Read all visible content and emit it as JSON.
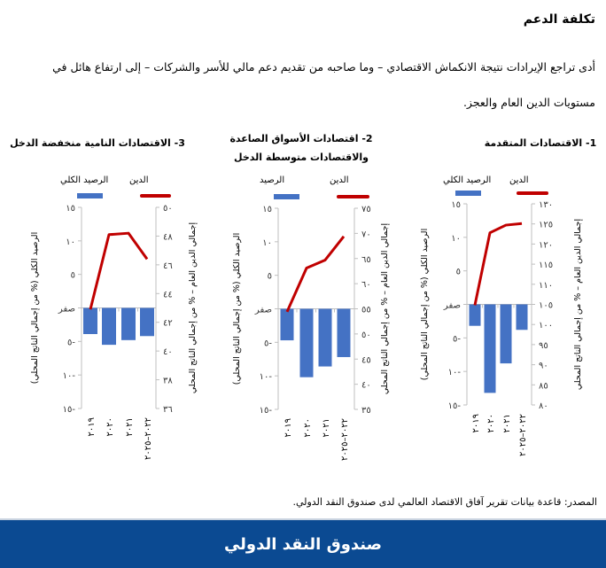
{
  "header": {
    "title": "تكلفة الدعم",
    "paragraph": "أدى تراجع الإيرادات نتيجة الانكماش الاقتصادي – وما صاحبه من تقديم دعم مالي للأسر والشركات – إلى ارتفاع هائل في مستويات الدين العام والعجز."
  },
  "source": "المصدر: قاعدة بيانات تقرير آفاق الاقتصاد العالمي لدى صندوق النقد الدولي.",
  "footer": {
    "brand": "صندوق النقد الدولي",
    "color": "#0b4a92"
  },
  "colors": {
    "balance_bar": "#4472c4",
    "debt_line": "#c00000"
  },
  "chart_data": [
    {
      "type": "bar+line",
      "title": [
        "1- الاقتصادات المتقدمة"
      ],
      "categories": [
        "٢٠١٩",
        "٢٠٢٠",
        "٢٠٢١",
        "٢٠٢٢–٢٠٢٥"
      ],
      "legend": {
        "line": "الدين",
        "bar": "الرصيد الكلي"
      },
      "left_axis": {
        "label": "الرصيد الكلي (% من إجمالي الناتج المحلي)",
        "range": [
          -15,
          15
        ],
        "ticks": [
          "١٥",
          "١٠",
          "٥",
          "صفر",
          "٥-",
          "١٠-",
          "١٥-"
        ]
      },
      "right_axis": {
        "label": "إجمالي الدين العام – % من إجمالي الناتج المحلي",
        "range": [
          80,
          130
        ],
        "ticks": [
          "١٣٠",
          "١٢٥",
          "١٢٠",
          "١١٥",
          "١١٠",
          "١٠٥",
          "١٠٠",
          "٩٥",
          "٩٠",
          "٨٥",
          "٨٠"
        ]
      },
      "series": [
        {
          "name": "الرصيد الكلي",
          "type": "bar",
          "axis": "left",
          "values": [
            -3.2,
            -13.2,
            -8.8,
            -3.8
          ]
        },
        {
          "name": "الدين",
          "type": "line",
          "axis": "right",
          "values": [
            104.8,
            122.8,
            124.7,
            125.1
          ]
        }
      ]
    },
    {
      "type": "bar+line",
      "title": [
        "2- اقتصادات الأسواق الصاعدة",
        "والاقتصادات متوسطة الدخل"
      ],
      "categories": [
        "٢٠١٩",
        "٢٠٢٠",
        "٢٠٢١",
        "٢٠٢٢–٢٠٢٥"
      ],
      "legend": {
        "line": "الدين",
        "bar": "الرصيد"
      },
      "left_axis": {
        "label": "الرصيد الكلي (% من إجمالي الناتج المحلي)",
        "range": [
          -15,
          15
        ],
        "ticks": [
          "١٥",
          "١٠",
          "٥",
          "صفر",
          "٥-",
          "١٠-",
          "١٥-"
        ]
      },
      "right_axis": {
        "label": "إجمالي الدين العام – % من إجمالي الناتج المحلي",
        "range": [
          35,
          75
        ],
        "ticks": [
          "٧٥",
          "٧٠",
          "٦٥",
          "٦٠",
          "٥٥",
          "٥٠",
          "٤٥",
          "٤٠",
          "٣٥"
        ]
      },
      "series": [
        {
          "name": "الرصيد",
          "type": "bar",
          "axis": "left",
          "values": [
            -4.7,
            -10.2,
            -8.6,
            -7.2
          ]
        },
        {
          "name": "الدين",
          "type": "line",
          "axis": "right",
          "values": [
            54.4,
            63.1,
            64.7,
            69.4
          ]
        }
      ]
    },
    {
      "type": "bar+line",
      "title": [
        "3- الاقتصادات النامية منخفضة الدخل"
      ],
      "categories": [
        "٢٠١٩",
        "٢٠٢٠",
        "٢٠٢١",
        "٢٠٢٢–٢٠٢٥"
      ],
      "legend": {
        "line": "الدين",
        "bar": "الرصيد الكلي"
      },
      "left_axis": {
        "label": "الرصيد الكلي (% من إجمالي الناتج المحلي)",
        "range": [
          -15,
          15
        ],
        "ticks": [
          "١٥",
          "١٠",
          "٥",
          "صفر",
          "٥-",
          "١٠-",
          "١٥-"
        ]
      },
      "right_axis": {
        "label": "إجمالي الدين العام – % من إجمالي الناتج المحلي",
        "range": [
          36,
          50
        ],
        "ticks": [
          "٥٠",
          "٤٨",
          "٤٦",
          "٤٤",
          "٤٢",
          "٤٠",
          "٣٨",
          "٣٦"
        ]
      },
      "series": [
        {
          "name": "الرصيد الكلي",
          "type": "bar",
          "axis": "left",
          "values": [
            -3.9,
            -5.5,
            -4.8,
            -4.2
          ]
        },
        {
          "name": "الدين",
          "type": "line",
          "axis": "right",
          "values": [
            42.9,
            48.1,
            48.2,
            46.4
          ]
        }
      ]
    }
  ]
}
